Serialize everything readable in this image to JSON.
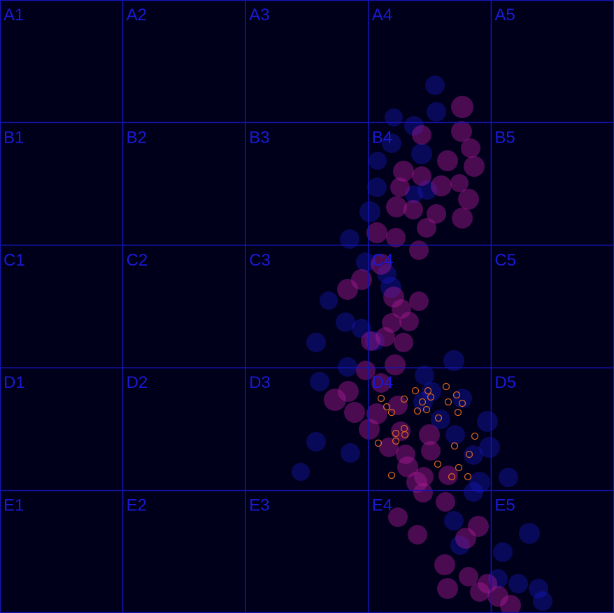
{
  "game": {
    "grid": {
      "rows": [
        "A",
        "B",
        "C",
        "D",
        "E"
      ],
      "cols": [
        "1",
        "2",
        "3",
        "4",
        "5"
      ],
      "labels": [
        [
          "A1",
          "A2",
          "A3",
          "A4",
          "A5"
        ],
        [
          "B1",
          "B2",
          "B3",
          "B4",
          "B5"
        ],
        [
          "C1",
          "C2",
          "C3",
          "C4",
          "C5"
        ],
        [
          "D1",
          "D2",
          "D3",
          "D4",
          "D5"
        ],
        [
          "E1",
          "E2",
          "E3",
          "E4",
          "E5"
        ]
      ]
    },
    "colors": {
      "background": "#00001a",
      "grid_line": "#1414b4",
      "label": "#1a1ad6",
      "magenta_particle": "#b01a9c",
      "blue_particle": "#1a1ad0",
      "orange_marker": "#d2641e"
    }
  }
}
